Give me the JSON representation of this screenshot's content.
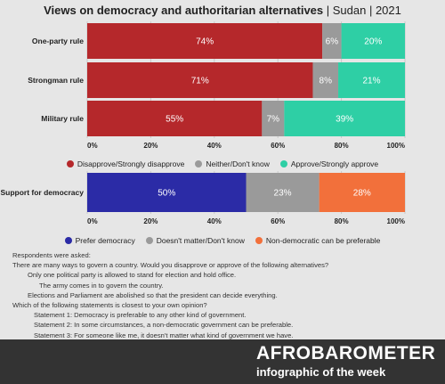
{
  "title": {
    "main": "Views on democracy and authoritarian alternatives",
    "suffix": " | Sudan | 2021"
  },
  "chart_data": [
    {
      "type": "bar",
      "orientation": "horizontal",
      "stacked": true,
      "categories": [
        "One-party rule",
        "Strongman rule",
        "Military rule"
      ],
      "series": [
        {
          "name": "Disapprove/Strongly disapprove",
          "values": [
            74,
            71,
            55
          ],
          "labels": [
            "74%",
            "71%",
            "55%"
          ],
          "color": "#b5282b"
        },
        {
          "name": "Neither/Don't know",
          "values": [
            6,
            8,
            7
          ],
          "labels": [
            "6%",
            "8%",
            "7%"
          ],
          "color": "#9a9a9a"
        },
        {
          "name": "Approve/Strongly approve",
          "values": [
            20,
            21,
            39
          ],
          "labels": [
            "20%",
            "21%",
            "39%"
          ],
          "color": "#2ecfa5"
        }
      ],
      "xlim": [
        0,
        100
      ],
      "xticks": [
        "0%",
        "20%",
        "40%",
        "60%",
        "80%",
        "100%"
      ],
      "legend_position": "bottom"
    },
    {
      "type": "bar",
      "orientation": "horizontal",
      "stacked": true,
      "categories": [
        "Support for democracy"
      ],
      "series": [
        {
          "name": "Prefer democracy",
          "values": [
            50
          ],
          "labels": [
            "50%"
          ],
          "color": "#2b2ba6"
        },
        {
          "name": "Doesn't matter/Don't know",
          "values": [
            23
          ],
          "labels": [
            "23%"
          ],
          "color": "#9a9a9a"
        },
        {
          "name": "Non-democratic can be preferable",
          "values": [
            28
          ],
          "labels": [
            "28%"
          ],
          "color": "#f2703b"
        }
      ],
      "xlim": [
        0,
        100
      ],
      "xticks": [
        "0%",
        "20%",
        "40%",
        "60%",
        "80%",
        "100%"
      ],
      "legend_position": "bottom"
    }
  ],
  "notes": {
    "intro": "Respondents were asked:",
    "q1": "There are many ways to govern a country. Would you disapprove or approve of the following alternatives?",
    "q1_items": [
      "Only one political party is allowed to stand for election and hold office.",
      "The army comes in to govern the country.",
      "Elections and Parliament are abolished so that the president can decide everything."
    ],
    "q2": "Which of the following statements is closest to your own opinion?",
    "q2_items": [
      "Statement 1: Democracy is preferable to any other kind of government.",
      "Statement 2: In some circumstances, a non-democratic government can be preferable.",
      "Statement 3: For someone like me, it doesn't matter what kind of government we have."
    ]
  },
  "footer": {
    "brand": "AFROBAROMETER",
    "subtitle": "infographic of the week"
  }
}
